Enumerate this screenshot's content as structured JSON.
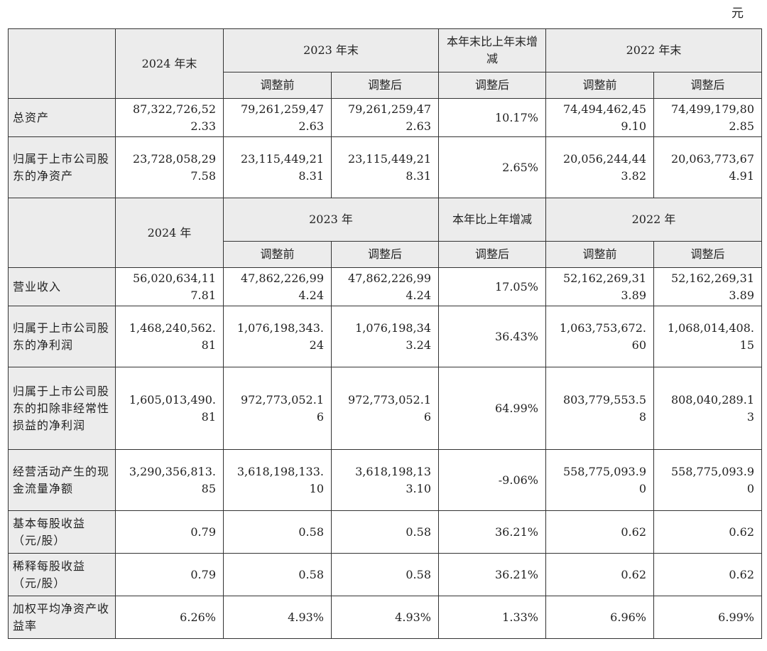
{
  "unit": "元",
  "section1": {
    "col_current": "2024 年末",
    "col_prev": "2023 年末",
    "col_change": "本年末比上年末增减",
    "col_prev2": "2022 年末",
    "sub_before": "调整前",
    "sub_after": "调整后",
    "rows": [
      {
        "label": "总资产",
        "v": [
          "87,322,726,522.33",
          "79,261,259,472.63",
          "79,261,259,472.63",
          "10.17%",
          "74,494,462,459.10",
          "74,499,179,802.85"
        ]
      },
      {
        "label": "归属于上市公司股东的净资产",
        "v": [
          "23,728,058,297.58",
          "23,115,449,218.31",
          "23,115,449,218.31",
          "2.65%",
          "20,056,244,443.82",
          "20,063,773,674.91"
        ]
      }
    ]
  },
  "section2": {
    "col_current": "2024 年",
    "col_prev": "2023 年",
    "col_change": "本年比上年增减",
    "col_prev2": "2022 年",
    "sub_before": "调整前",
    "sub_after": "调整后",
    "rows": [
      {
        "label": "营业收入",
        "v": [
          "56,020,634,117.81",
          "47,862,226,994.24",
          "47,862,226,994.24",
          "17.05%",
          "52,162,269,313.89",
          "52,162,269,313.89"
        ]
      },
      {
        "label": "归属于上市公司股东的净利润",
        "v": [
          "1,468,240,562.81",
          "1,076,198,343.24",
          "1,076,198,343.24",
          "36.43%",
          "1,063,753,672.60",
          "1,068,014,408.15"
        ]
      },
      {
        "label": "归属于上市公司股东的扣除非经常性损益的净利润",
        "v": [
          "1,605,013,490.81",
          "972,773,052.16",
          "972,773,052.16",
          "64.99%",
          "803,779,553.58",
          "808,040,289.13"
        ]
      },
      {
        "label": "经营活动产生的现金流量净额",
        "v": [
          "3,290,356,813.85",
          "3,618,198,133.10",
          "3,618,198,133.10",
          "-9.06%",
          "558,775,093.90",
          "558,775,093.90"
        ]
      },
      {
        "label": "基本每股收益（元/股）",
        "v": [
          "0.79",
          "0.58",
          "0.58",
          "36.21%",
          "0.62",
          "0.62"
        ]
      },
      {
        "label": "稀释每股收益（元/股）",
        "v": [
          "0.79",
          "0.58",
          "0.58",
          "36.21%",
          "0.62",
          "0.62"
        ]
      },
      {
        "label": "加权平均净资产收益率",
        "v": [
          "6.26%",
          "4.93%",
          "4.93%",
          "1.33%",
          "6.96%",
          "6.99%"
        ]
      }
    ]
  }
}
